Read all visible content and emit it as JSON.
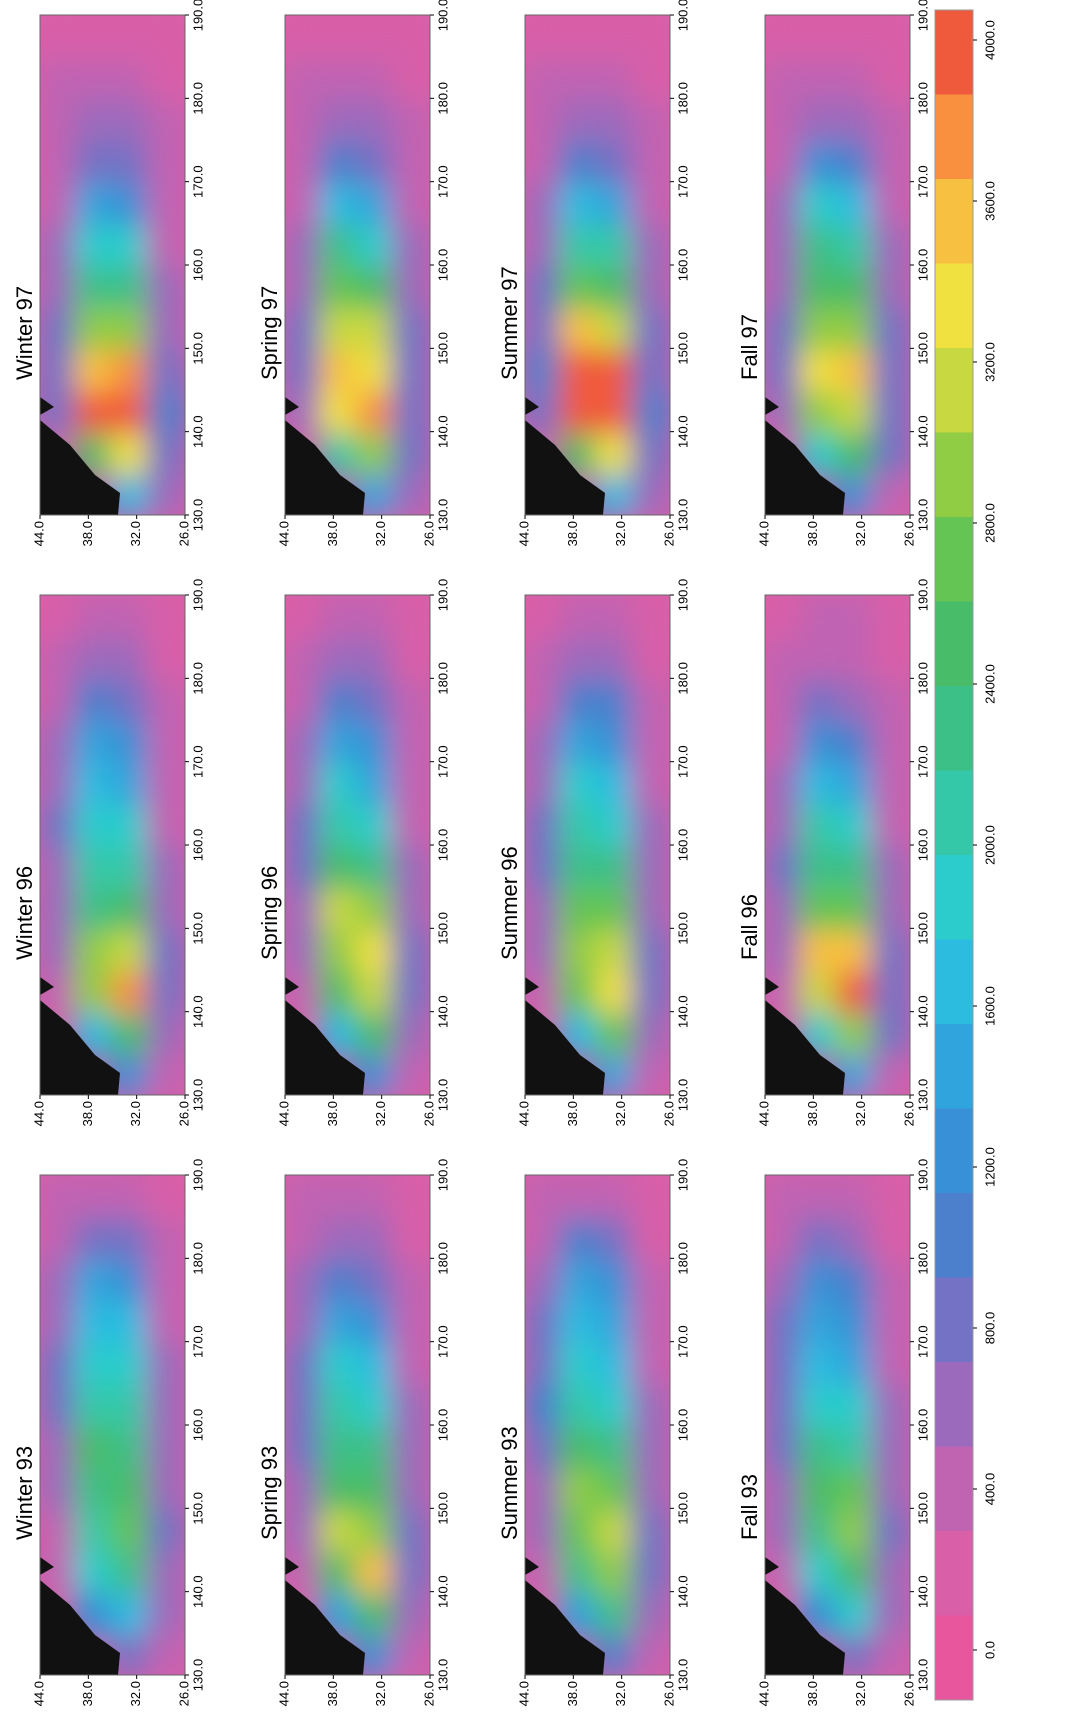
{
  "axes": {
    "xlim": [
      130,
      190
    ],
    "xticks": [
      {
        "value": 130,
        "label": "130.0"
      },
      {
        "value": 140,
        "label": "140.0"
      },
      {
        "value": 150,
        "label": "150.0"
      },
      {
        "value": 160,
        "label": "160.0"
      },
      {
        "value": 170,
        "label": "170.0"
      },
      {
        "value": 180,
        "label": "180.0"
      },
      {
        "value": 190,
        "label": "190.0"
      }
    ],
    "ylim": [
      26,
      44
    ],
    "yticks": [
      {
        "value": 44,
        "label": "44.0"
      },
      {
        "value": 38,
        "label": "38.0"
      },
      {
        "value": 32,
        "label": "32.0"
      },
      {
        "value": 26,
        "label": "26.0"
      }
    ],
    "clim": [
      0,
      4000
    ],
    "colorbar_ticks": [
      {
        "value": 0,
        "label": "0.0"
      },
      {
        "value": 400,
        "label": "400.0"
      },
      {
        "value": 800,
        "label": "800.0"
      },
      {
        "value": 1200,
        "label": "1200.0"
      },
      {
        "value": 1600,
        "label": "1600.0"
      },
      {
        "value": 2000,
        "label": "2000.0"
      },
      {
        "value": 2400,
        "label": "2400.0"
      },
      {
        "value": 2800,
        "label": "2800.0"
      },
      {
        "value": 3200,
        "label": "3200.0"
      },
      {
        "value": 3600,
        "label": "3600.0"
      },
      {
        "value": 4000,
        "label": "4000.0"
      }
    ],
    "colors": [
      "#e8569e",
      "#d85fa8",
      "#c064b2",
      "#9c6abc",
      "#7472c4",
      "#4c80cc",
      "#3890d6",
      "#30a4dc",
      "#2cbce0",
      "#2ccccc",
      "#34c8a8",
      "#3cc088",
      "#48bc68",
      "#64c454",
      "#90cc44",
      "#c8d840",
      "#f0e040",
      "#f8c040",
      "#f89040",
      "#f05a3c"
    ]
  },
  "chart_data": [
    {
      "type": "heatmap",
      "title": "Winter 93",
      "z": [
        [
          null,
          null,
          400,
          500,
          600,
          700,
          900,
          800,
          700,
          600,
          500,
          400
        ],
        [
          null,
          1200,
          1800,
          2000,
          2200,
          2400,
          2000,
          1800,
          1600,
          1400,
          900,
          500
        ],
        [
          800,
          1600,
          2200,
          2600,
          2400,
          2200,
          2000,
          1800,
          1600,
          1200,
          800,
          500
        ],
        [
          400,
          600,
          700,
          800,
          700,
          700,
          600,
          600,
          500,
          500,
          400,
          300
        ]
      ]
    },
    {
      "type": "heatmap",
      "title": "Spring 93",
      "z": [
        [
          null,
          null,
          500,
          600,
          700,
          800,
          900,
          800,
          700,
          600,
          500,
          400
        ],
        [
          null,
          1400,
          2400,
          3000,
          2400,
          2200,
          2000,
          1800,
          1400,
          1000,
          700,
          400
        ],
        [
          1200,
          2400,
          3400,
          2800,
          2400,
          2200,
          1800,
          1600,
          1200,
          900,
          600,
          400
        ],
        [
          500,
          700,
          800,
          800,
          700,
          600,
          600,
          500,
          500,
          400,
          300,
          300
        ]
      ]
    },
    {
      "type": "heatmap",
      "title": "Summer 93",
      "z": [
        [
          null,
          null,
          500,
          600,
          700,
          900,
          1000,
          900,
          800,
          700,
          500,
          400
        ],
        [
          null,
          1400,
          2200,
          2600,
          2800,
          2400,
          2000,
          1800,
          1600,
          1400,
          1000,
          500
        ],
        [
          1000,
          2200,
          2800,
          3000,
          2600,
          2200,
          1800,
          1600,
          1400,
          1200,
          800,
          500
        ],
        [
          500,
          700,
          800,
          800,
          700,
          700,
          600,
          500,
          500,
          400,
          300,
          300
        ]
      ]
    },
    {
      "type": "heatmap",
      "title": "Fall 93",
      "z": [
        [
          null,
          null,
          500,
          600,
          700,
          800,
          900,
          900,
          800,
          700,
          500,
          400
        ],
        [
          null,
          1200,
          1800,
          2200,
          2400,
          2200,
          1800,
          1600,
          1400,
          1200,
          800,
          500
        ],
        [
          900,
          1800,
          2400,
          2800,
          2600,
          2000,
          1800,
          1500,
          1200,
          1000,
          700,
          400
        ],
        [
          400,
          600,
          700,
          800,
          700,
          600,
          600,
          500,
          500,
          400,
          300,
          300
        ]
      ]
    },
    {
      "type": "heatmap",
      "title": "Winter 96",
      "z": [
        [
          null,
          null,
          500,
          600,
          700,
          700,
          800,
          700,
          600,
          500,
          400,
          300
        ],
        [
          null,
          1600,
          2800,
          2800,
          2200,
          2000,
          1800,
          1600,
          1400,
          1000,
          600,
          400
        ],
        [
          1200,
          2400,
          3600,
          3000,
          2400,
          2000,
          1800,
          1500,
          1200,
          900,
          600,
          400
        ],
        [
          500,
          700,
          800,
          800,
          700,
          600,
          500,
          500,
          400,
          400,
          300,
          300
        ]
      ]
    },
    {
      "type": "heatmap",
      "title": "Spring 96",
      "z": [
        [
          null,
          null,
          500,
          600,
          700,
          800,
          800,
          700,
          600,
          500,
          400,
          300
        ],
        [
          null,
          1600,
          2400,
          2800,
          3000,
          2400,
          2000,
          1800,
          1400,
          1000,
          600,
          400
        ],
        [
          1200,
          2400,
          3000,
          3200,
          2800,
          2200,
          1800,
          1500,
          1200,
          900,
          600,
          400
        ],
        [
          500,
          700,
          800,
          800,
          700,
          600,
          500,
          500,
          400,
          400,
          300,
          300
        ]
      ]
    },
    {
      "type": "heatmap",
      "title": "Summer 96",
      "z": [
        [
          null,
          null,
          500,
          600,
          700,
          800,
          800,
          700,
          600,
          500,
          400,
          300
        ],
        [
          null,
          1600,
          2600,
          2800,
          2600,
          2200,
          2000,
          1800,
          1500,
          1100,
          700,
          400
        ],
        [
          1400,
          2600,
          3200,
          3000,
          2600,
          2200,
          1800,
          1600,
          1300,
          1000,
          600,
          400
        ],
        [
          500,
          700,
          900,
          800,
          700,
          600,
          600,
          500,
          400,
          400,
          300,
          300
        ]
      ]
    },
    {
      "type": "heatmap",
      "title": "Fall 96",
      "z": [
        [
          null,
          null,
          500,
          600,
          700,
          800,
          700,
          600,
          500,
          500,
          400,
          300
        ],
        [
          null,
          1800,
          3000,
          3400,
          2600,
          2200,
          2000,
          1700,
          1200,
          800,
          500,
          400
        ],
        [
          1400,
          2800,
          3800,
          3400,
          2600,
          2200,
          1800,
          1400,
          1000,
          700,
          500,
          400
        ],
        [
          500,
          800,
          900,
          800,
          700,
          600,
          500,
          500,
          400,
          400,
          300,
          300
        ]
      ]
    },
    {
      "type": "heatmap",
      "title": "Winter 97",
      "z": [
        [
          null,
          null,
          800,
          900,
          800,
          700,
          600,
          500,
          500,
          400,
          400,
          300
        ],
        [
          null,
          2400,
          3800,
          3400,
          2800,
          2200,
          1800,
          1400,
          900,
          600,
          400,
          300
        ],
        [
          1600,
          3200,
          4000,
          3600,
          2800,
          2200,
          1800,
          1200,
          800,
          600,
          400,
          300
        ],
        [
          600,
          900,
          1000,
          900,
          700,
          600,
          500,
          500,
          400,
          400,
          300,
          300
        ]
      ]
    },
    {
      "type": "heatmap",
      "title": "Spring 97",
      "z": [
        [
          null,
          null,
          700,
          900,
          800,
          700,
          600,
          500,
          500,
          400,
          400,
          300
        ],
        [
          null,
          2000,
          3200,
          3400,
          3000,
          2600,
          2200,
          1600,
          1000,
          700,
          500,
          300
        ],
        [
          1400,
          2800,
          3600,
          3200,
          3000,
          2400,
          1800,
          1400,
          900,
          600,
          400,
          300
        ],
        [
          600,
          800,
          900,
          900,
          800,
          700,
          600,
          500,
          400,
          400,
          300,
          300
        ]
      ]
    },
    {
      "type": "heatmap",
      "title": "Summer 97",
      "z": [
        [
          null,
          null,
          800,
          1000,
          900,
          800,
          700,
          600,
          500,
          400,
          400,
          300
        ],
        [
          null,
          2400,
          3800,
          4000,
          3400,
          2600,
          2000,
          1600,
          1000,
          600,
          400,
          300
        ],
        [
          1600,
          3200,
          4000,
          3800,
          3000,
          2400,
          2000,
          1400,
          900,
          600,
          400,
          300
        ],
        [
          600,
          900,
          1000,
          900,
          800,
          700,
          600,
          500,
          400,
          400,
          300,
          300
        ]
      ]
    },
    {
      "type": "heatmap",
      "title": "Fall 97",
      "z": [
        [
          null,
          null,
          700,
          800,
          800,
          700,
          700,
          600,
          500,
          400,
          400,
          300
        ],
        [
          null,
          1800,
          2800,
          3200,
          2800,
          2400,
          2200,
          1800,
          1200,
          700,
          500,
          300
        ],
        [
          1200,
          2400,
          3000,
          3400,
          2800,
          2400,
          2000,
          1600,
          1000,
          600,
          400,
          300
        ],
        [
          500,
          800,
          900,
          900,
          800,
          700,
          600,
          500,
          400,
          400,
          300,
          300
        ]
      ]
    }
  ]
}
